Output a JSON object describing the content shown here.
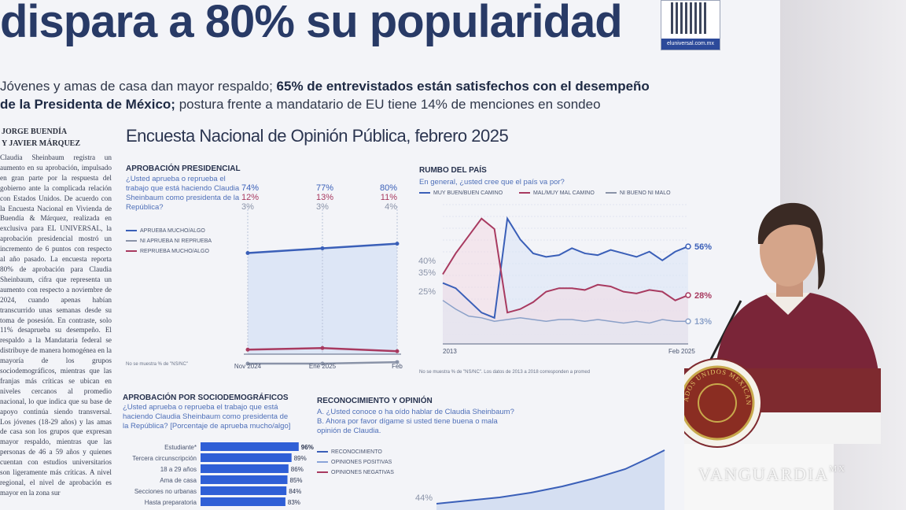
{
  "headline": "dispara a 80% su popularidad",
  "qr_url": "eluniversal.com.mx",
  "subtitle": {
    "part1": "Jóvenes y amas de casa dan mayor respaldo; ",
    "bold": "65% de entrevistados están satisfechos con el desempeño de la Presidenta de México;",
    "part2": " postura frente a mandatario de EU tiene 14% de menciones en sondeo"
  },
  "byline": [
    "JORGE BUENDÍA",
    "Y JAVIER MÁRQUEZ"
  ],
  "article": "Claudia Sheinbaum registra un aumento en su aprobación, impulsado en gran parte por la respuesta del gobierno ante la complicada relación con Estados Unidos. De acuerdo con la Encuesta Nacional en Vivienda de Buendía & Márquez, realizada en exclusiva para EL UNIVERSAL, la aprobación presidencial mostró un incremento de 6 puntos con respecto al año pasado. La encuesta reporta 80% de aprobación para Claudia Sheinbaum, cifra que representa un aumento con respecto a noviembre de 2024, cuando apenas habían transcurrido unas semanas desde su toma de posesión. En contraste, solo 11% desaprueba su desempeño. El respaldo a la Mandataria federal se distribuye de manera homogénea en la mayoría de los grupos sociodemográficos, mientras que las franjas más críticas se ubican en niveles cercanos al promedio nacional, lo que indica que su base de apoyo continúa siendo transversal. Los jóvenes (18-29 años) y las amas de casa son los grupos que expresan mayor respaldo, mientras que las personas de 46 a 59 años y quienes cuentan con estudios universitarios son ligeramente más críticas. A nivel regional, el nivel de aprobación es mayor en la zona sur",
  "survey_title": "Encuesta Nacional de Opinión Pública, febrero 2025",
  "aprobacion": {
    "label": "APROBACIÓN PRESIDENCIAL",
    "question": "¿Usted aprueba o reprueba el trabajo que está haciendo Claudia Sheinbaum como presidenta de la República?",
    "legend": [
      "APRUEBA MUCHO/ALGO",
      "NI APRUEBA NI REPRUEBA",
      "REPRUEBA MUCHO/ALGO"
    ],
    "note": "No se muestra % de \"NS/NC\"",
    "colors": {
      "aprueba": "#3a5fb8",
      "ni": "#8a93a8",
      "reprueba": "#a83a60"
    }
  },
  "rumbo": {
    "label": "RUMBO DEL PAÍS",
    "question": "En general, ¿usted cree que el país va por?",
    "legend": [
      "MUY BUEN/BUEN CAMINO",
      "MAL/MUY MAL CAMINO",
      "NI BUENO NI MALO"
    ],
    "note": "No se muestra % de \"NS/NC\". Los datos de 2013 a 2018 corresponden a promed",
    "start_labels": [
      "40%",
      "35%",
      "25%"
    ]
  },
  "socio": {
    "label": "APROBACIÓN POR SOCIODEMOGRÁFICOS",
    "question": "¿Usted aprueba o reprueba el trabajo que está haciendo Claudia Sheinbaum como presidenta de la República?",
    "question_note": "[Porcentaje de aprueba mucho/algo]"
  },
  "reconocimiento": {
    "label": "RECONOCIMIENTO Y OPINIÓN",
    "question_a": "A. ¿Usted conoce o ha oído hablar de Claudia Sheinbaum?",
    "question_b": "B. Ahora por favor dígame si usted tiene buena o mala opinión de Claudia.",
    "legend": [
      "RECONOCIMIENTO",
      "OPINIONES POSITIVAS",
      "OPINIONES NEGATIVAS"
    ],
    "start_value": "44%"
  },
  "watermark": "VANGUARDIA",
  "watermark_suffix": "MX",
  "seal_text": "ESTADOS UNIDOS MEXICANOS",
  "chart_data": [
    {
      "type": "line",
      "title": "APROBACIÓN PRESIDENCIAL",
      "categories": [
        "Nov 2024",
        "Ene 2025",
        "Feb"
      ],
      "series": [
        {
          "name": "APRUEBA MUCHO/ALGO",
          "values": [
            74,
            77,
            80
          ],
          "labels": [
            "74%",
            "77%",
            "80%"
          ]
        },
        {
          "name": "NI APRUEBA NI REPRUEBA",
          "values": [
            3,
            3,
            4
          ],
          "labels": [
            "3%",
            "3%",
            "4%"
          ]
        },
        {
          "name": "REPRUEBA MUCHO/ALGO",
          "values": [
            12,
            13,
            11
          ],
          "labels": [
            "12%",
            "13%",
            "11%"
          ]
        }
      ],
      "ylim": [
        0,
        100
      ]
    },
    {
      "type": "line",
      "title": "RUMBO DEL PAÍS",
      "x_labels": [
        "2013",
        "Feb 2025"
      ],
      "series": [
        {
          "name": "MUY BUEN/BUEN CAMINO",
          "values": [
            35,
            32,
            25,
            18,
            15,
            72,
            60,
            52,
            50,
            51,
            55,
            52,
            51,
            54,
            52,
            50,
            53,
            48,
            53,
            56
          ],
          "end_label": "56%"
        },
        {
          "name": "MAL/MUY MAL CAMINO",
          "values": [
            40,
            52,
            62,
            72,
            66,
            18,
            20,
            24,
            30,
            32,
            32,
            31,
            34,
            33,
            30,
            29,
            31,
            30,
            25,
            28
          ],
          "end_label": "28%"
        },
        {
          "name": "NI BUENO NI MALO",
          "values": [
            25,
            20,
            16,
            15,
            13,
            14,
            15,
            14,
            13,
            14,
            14,
            13,
            14,
            13,
            12,
            13,
            12,
            14,
            13,
            13
          ],
          "end_label": "13%"
        }
      ],
      "ylim": [
        0,
        80
      ]
    },
    {
      "type": "bar",
      "title": "APROBACIÓN POR SOCIODEMOGRÁFICOS",
      "categories": [
        "Estudiante*",
        "Tercera circunscripción",
        "18 a 29 años",
        "Ama de casa",
        "Secciones no urbanas",
        "Hasta preparatoria"
      ],
      "values": [
        96,
        89,
        86,
        85,
        84,
        83
      ],
      "labels": [
        "96%",
        "89%",
        "86%",
        "85%",
        "84%",
        "83%"
      ]
    }
  ]
}
